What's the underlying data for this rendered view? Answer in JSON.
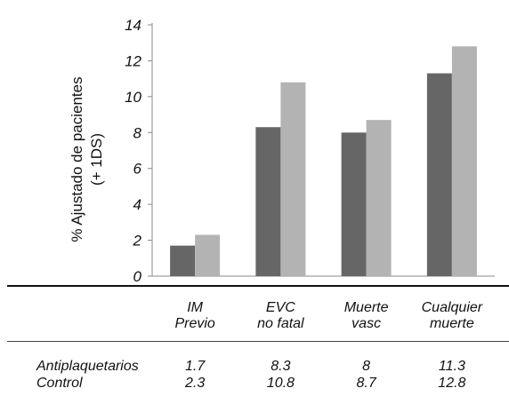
{
  "chart_data": {
    "type": "bar",
    "ylabel_lines": [
      "% Ajustado de pacientes",
      "(+ 1DS)"
    ],
    "ylim": [
      0,
      14
    ],
    "yticks": [
      0,
      2,
      4,
      6,
      8,
      10,
      12,
      14
    ],
    "categories": [
      {
        "lines": [
          "IM",
          "Previo"
        ]
      },
      {
        "lines": [
          "EVC",
          "no fatal"
        ]
      },
      {
        "lines": [
          "Muerte",
          "vasc"
        ]
      },
      {
        "lines": [
          "Cualquier",
          "muerte"
        ]
      }
    ],
    "series": [
      {
        "name": "Antiplaquetarios",
        "color": "#666666",
        "values": [
          1.7,
          8.3,
          8,
          11.3
        ],
        "labels": [
          "1.7",
          "8.3",
          "8",
          "11.3"
        ]
      },
      {
        "name": "Control",
        "color": "#b3b3b3",
        "values": [
          2.3,
          10.8,
          8.7,
          12.8
        ],
        "labels": [
          "2.3",
          "10.8",
          "8.7",
          "12.8"
        ]
      }
    ],
    "grid": false,
    "legend": "table below chart"
  }
}
